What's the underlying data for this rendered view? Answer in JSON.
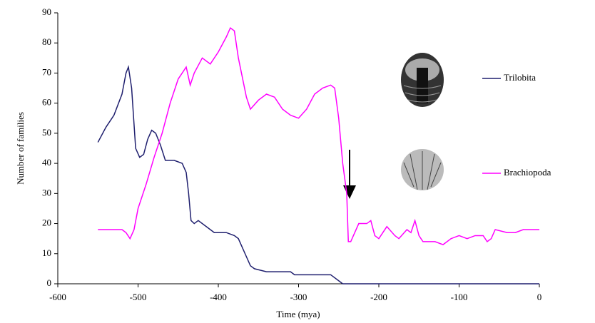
{
  "chart_data": {
    "type": "line",
    "x_label": "Time (mya)",
    "y_label": "Number of families",
    "xlim": [
      -600,
      0
    ],
    "xticks": [
      -600,
      -500,
      -400,
      -300,
      -200,
      -100,
      0
    ],
    "ylim": [
      0,
      90
    ],
    "yticks": [
      0,
      10,
      20,
      30,
      40,
      50,
      60,
      70,
      80,
      90
    ],
    "grid": false,
    "legend": "right",
    "series": [
      {
        "name": "Trilobita",
        "color": "#1f1f6e",
        "x": [
          -550,
          -540,
          -530,
          -520,
          -515,
          -512,
          -508,
          -503,
          -498,
          -493,
          -488,
          -483,
          -478,
          -472,
          -466,
          -455,
          -445,
          -440,
          -437,
          -434,
          -430,
          -425,
          -415,
          -405,
          -390,
          -380,
          -375,
          -365,
          -360,
          -355,
          -340,
          -310,
          -305,
          -260,
          -250,
          -245,
          0
        ],
        "values": [
          47,
          52,
          56,
          63,
          70,
          72,
          65,
          45,
          42,
          43,
          48,
          51,
          50,
          46,
          41,
          41,
          40,
          37,
          30,
          21,
          20,
          21,
          19,
          17,
          17,
          16,
          15,
          9,
          6,
          5,
          4,
          4,
          3,
          3,
          1,
          0,
          0
        ]
      },
      {
        "name": "Brachiopoda",
        "color": "#ff00ff",
        "x": [
          -550,
          -520,
          -515,
          -510,
          -505,
          -500,
          -490,
          -480,
          -470,
          -460,
          -450,
          -440,
          -435,
          -430,
          -420,
          -410,
          -400,
          -390,
          -385,
          -380,
          -375,
          -365,
          -360,
          -350,
          -340,
          -330,
          -320,
          -310,
          -300,
          -290,
          -280,
          -270,
          -260,
          -255,
          -250,
          -245,
          -240,
          -238,
          -235,
          -230,
          -225,
          -215,
          -210,
          -205,
          -200,
          -195,
          -190,
          -180,
          -175,
          -165,
          -160,
          -155,
          -150,
          -145,
          -130,
          -120,
          -110,
          -100,
          -90,
          -80,
          -70,
          -65,
          -60,
          -55,
          -40,
          -30,
          -20,
          0
        ],
        "values": [
          18,
          18,
          17,
          15,
          18,
          25,
          33,
          42,
          50,
          60,
          68,
          72,
          66,
          70,
          75,
          73,
          77,
          82,
          85,
          84,
          75,
          62,
          58,
          61,
          63,
          62,
          58,
          56,
          55,
          58,
          63,
          65,
          66,
          65,
          55,
          40,
          30,
          14,
          14,
          17,
          20,
          20,
          21,
          16,
          15,
          17,
          19,
          16,
          15,
          18,
          17,
          21,
          16,
          14,
          14,
          13,
          15,
          16,
          15,
          16,
          16,
          14,
          15,
          18,
          17,
          17,
          18,
          18
        ]
      }
    ]
  }
}
